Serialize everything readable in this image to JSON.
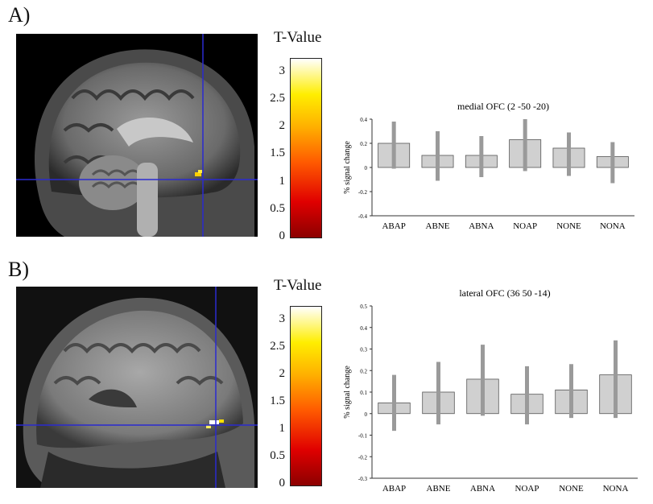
{
  "panels": [
    {
      "label": "A)",
      "colorbar": {
        "title": "T-Value",
        "ticks": [
          "3",
          "2.5",
          "2",
          "1.5",
          "1",
          "0.5",
          "0"
        ]
      },
      "chart_data": {
        "type": "bar",
        "title": "medial OFC (2 -50 -20)",
        "ylabel": "% signal change",
        "categories": [
          "ABAP",
          "ABNE",
          "ABNA",
          "NOAP",
          "NONE",
          "NONA"
        ],
        "values": [
          0.2,
          0.1,
          0.1,
          0.23,
          0.16,
          0.09
        ],
        "error_low": [
          -0.01,
          -0.11,
          -0.08,
          -0.03,
          -0.07,
          -0.13
        ],
        "error_high": [
          0.38,
          0.3,
          0.26,
          0.4,
          0.29,
          0.21
        ],
        "ylim": [
          -0.4,
          0.4
        ],
        "yticks": [
          "0.4",
          "0.2",
          "0",
          "-0.2",
          "-0.4"
        ]
      }
    },
    {
      "label": "B)",
      "colorbar": {
        "title": "T-Value",
        "ticks": [
          "3",
          "2.5",
          "2",
          "1.5",
          "1",
          "0.5",
          "0"
        ]
      },
      "chart_data": {
        "type": "bar",
        "title": "lateral OFC (36 50 -14)",
        "ylabel": "% signal change",
        "categories": [
          "ABAP",
          "ABNE",
          "ABNA",
          "NOAP",
          "NONE",
          "NONA"
        ],
        "values": [
          0.05,
          0.1,
          0.16,
          0.09,
          0.11,
          0.18
        ],
        "error_low": [
          -0.08,
          -0.05,
          -0.01,
          -0.05,
          -0.02,
          -0.02
        ],
        "error_high": [
          0.18,
          0.24,
          0.32,
          0.22,
          0.23,
          0.34
        ],
        "ylim": [
          -0.3,
          0.5
        ],
        "yticks": [
          "0.5",
          "0.4",
          "0.3",
          "0.2",
          "0.1",
          "0",
          "-0.1",
          "-0.2",
          "-0.3"
        ]
      }
    }
  ],
  "colors": {
    "bar_fill": "#d0d0d0",
    "bar_edge": "#555555",
    "error_bar": "#9a9a9a",
    "crosshair": "#2a2ad0"
  }
}
